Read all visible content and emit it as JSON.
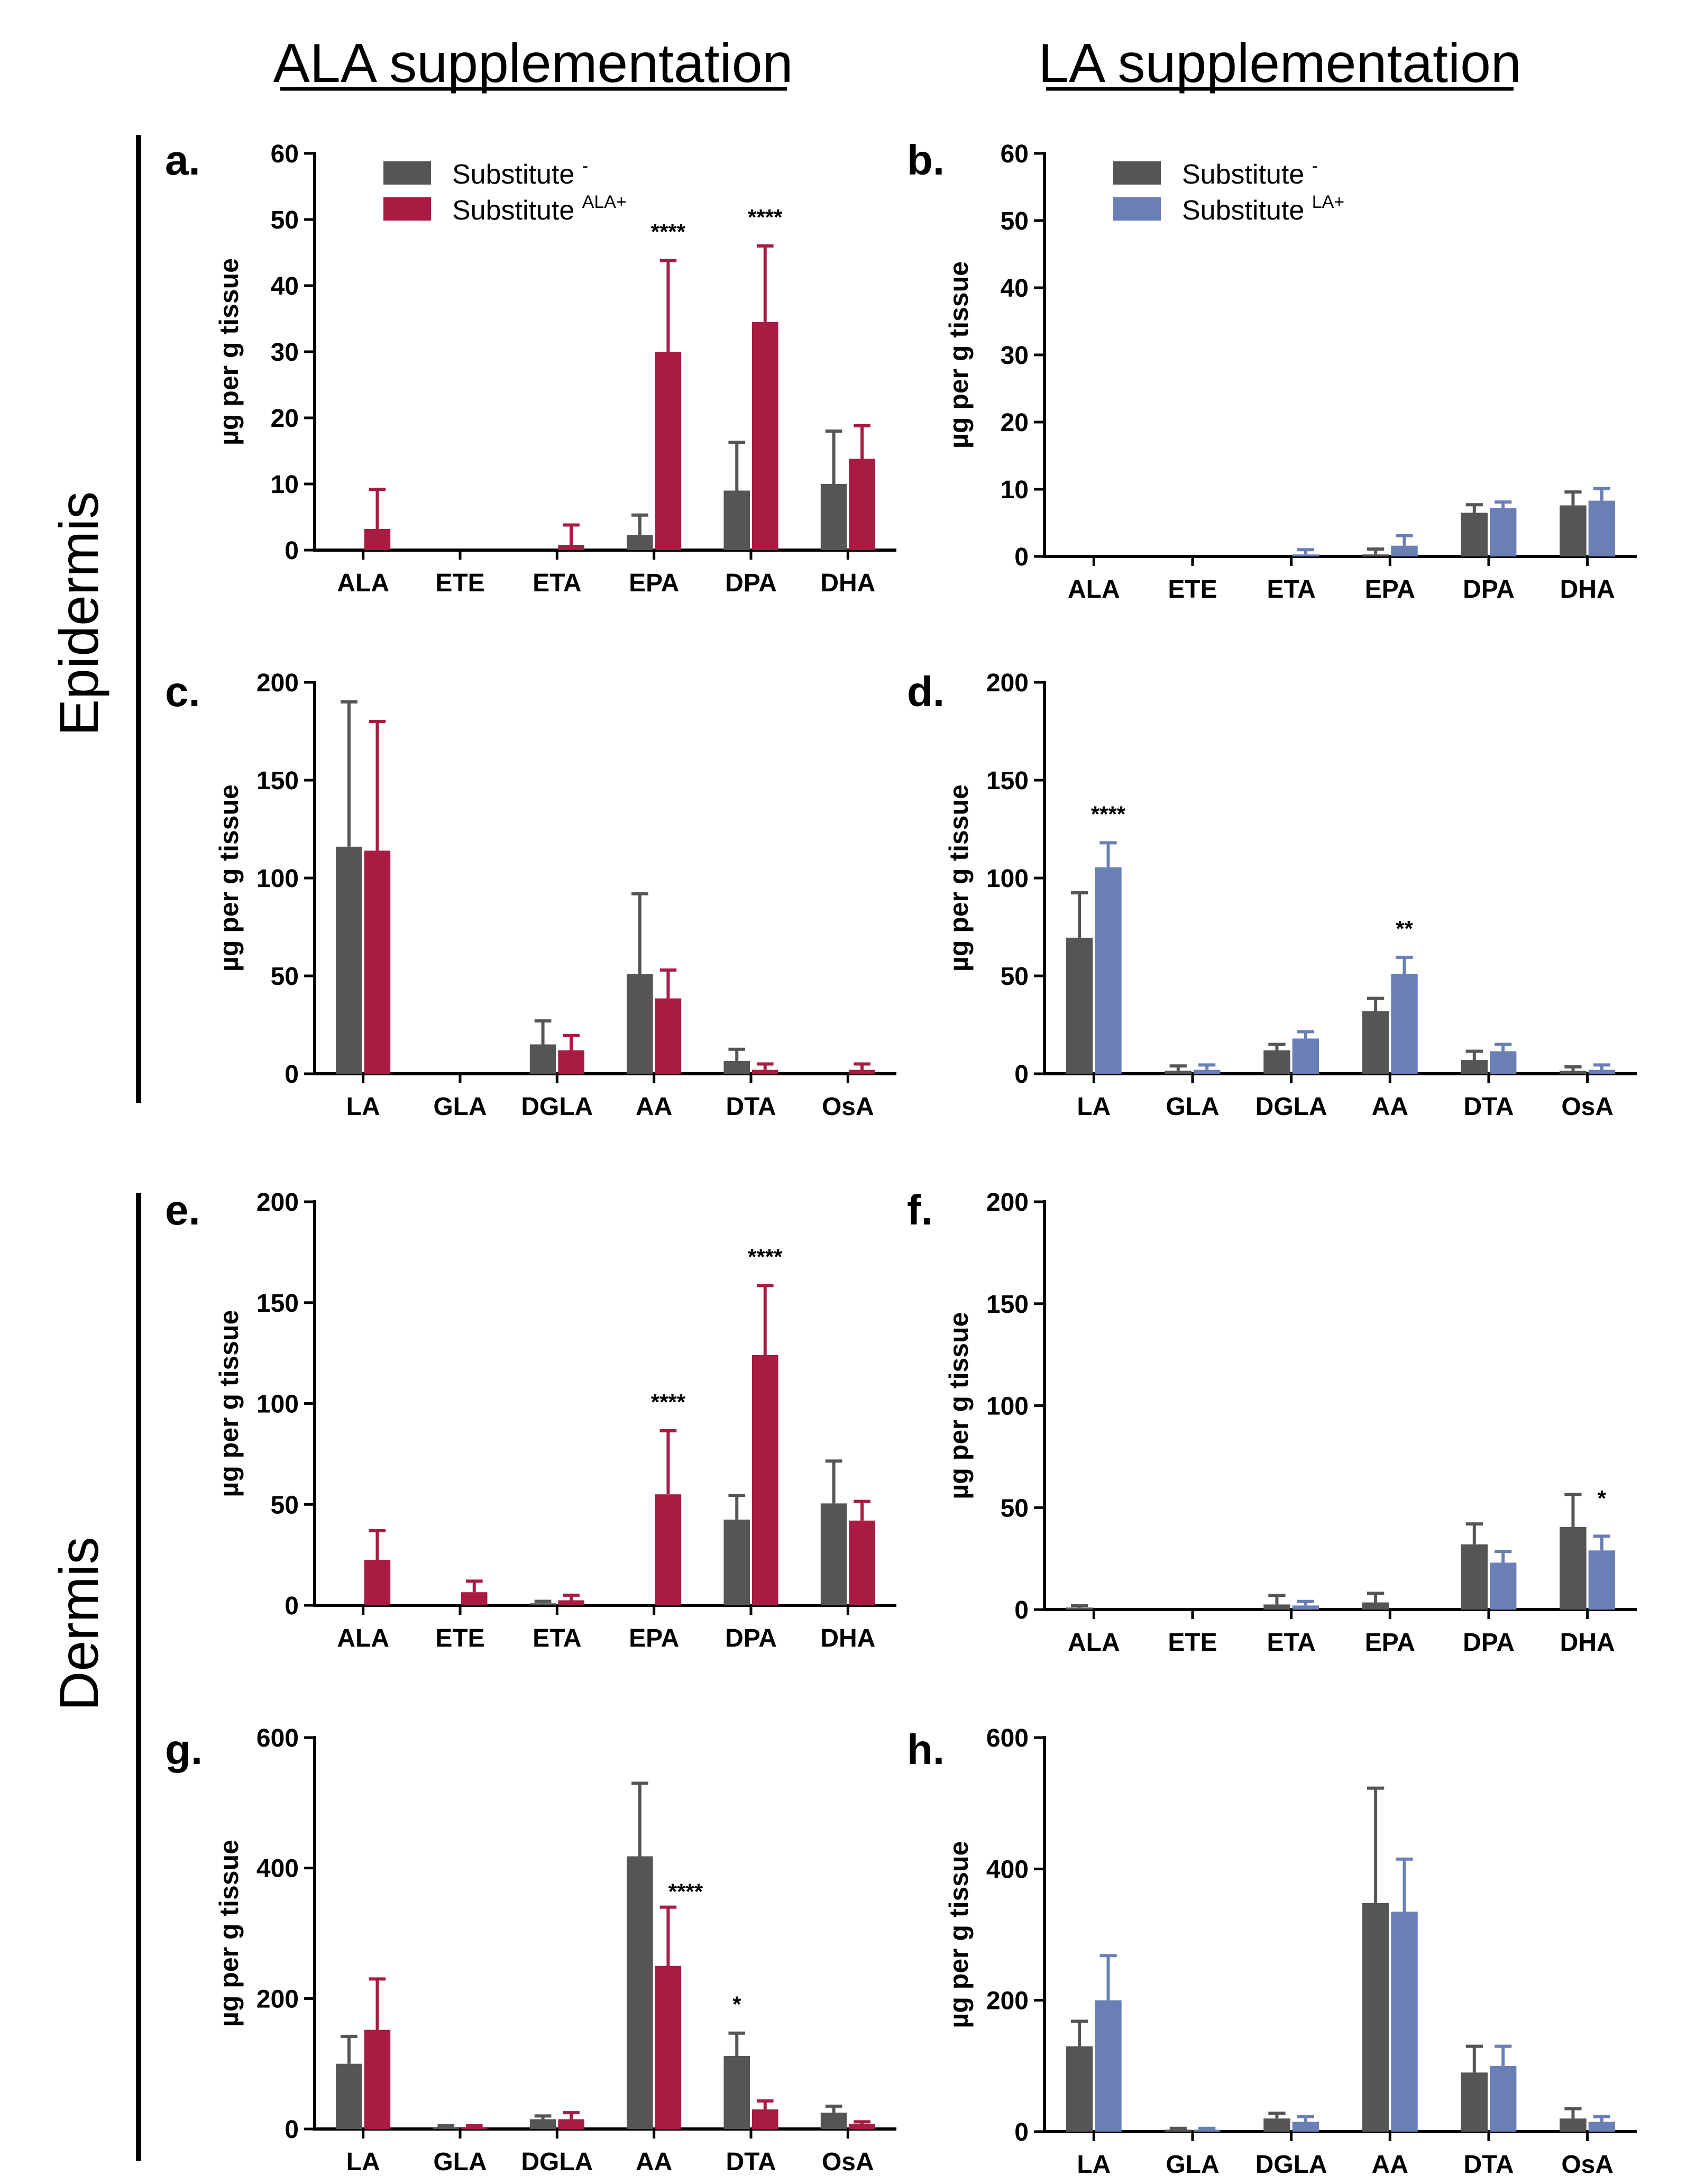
{
  "column_titles": [
    "ALA supplementation",
    "LA supplementation"
  ],
  "row_titles": [
    "Epidermis",
    "Dermis"
  ],
  "colors": {
    "control": "#555555",
    "ala": "#A81B43",
    "la": "#6A7FB5"
  },
  "legends": {
    "ala": {
      "control_label": "Substitute",
      "control_sup": "-",
      "treat_label": "Substitute",
      "treat_sup": "ALA+"
    },
    "la": {
      "control_label": "Substitute",
      "control_sup": "-",
      "treat_label": "Substitute",
      "treat_sup": "LA+"
    }
  },
  "ylabel": "µg per g tissue",
  "chart_data": [
    {
      "panel": "a.",
      "type": "bar",
      "treatment": "ALA",
      "ylim": [
        0,
        60
      ],
      "yticks": [
        0,
        10,
        20,
        30,
        40,
        50,
        60
      ],
      "categories": [
        "ALA",
        "ETE",
        "ETA",
        "EPA",
        "DPA",
        "DHA"
      ],
      "series": [
        {
          "name": "Substitute -",
          "values": [
            0,
            0,
            0,
            2.3,
            9,
            10
          ],
          "errors": [
            0,
            0,
            0,
            3,
            7.3,
            8
          ]
        },
        {
          "name": "Substitute ALA+",
          "values": [
            3.2,
            0,
            0.8,
            30,
            34.5,
            13.8
          ],
          "errors": [
            6,
            0,
            3,
            13.8,
            11.5,
            5
          ]
        }
      ],
      "annotations": [
        {
          "category": "EPA",
          "text": "****"
        },
        {
          "category": "DPA",
          "text": "****"
        }
      ],
      "show_legend": true
    },
    {
      "panel": "b.",
      "type": "bar",
      "treatment": "LA",
      "ylim": [
        0,
        60
      ],
      "yticks": [
        0,
        10,
        20,
        30,
        40,
        50,
        60
      ],
      "categories": [
        "ALA",
        "ETE",
        "ETA",
        "EPA",
        "DPA",
        "DHA"
      ],
      "series": [
        {
          "name": "Substitute -",
          "values": [
            0,
            0,
            0,
            0.3,
            6.5,
            7.6
          ],
          "errors": [
            0,
            0,
            0,
            0.8,
            1.2,
            2
          ]
        },
        {
          "name": "Substitute LA+",
          "values": [
            0,
            0,
            0.3,
            1.6,
            7.2,
            8.3
          ],
          "errors": [
            0,
            0,
            0.7,
            1.5,
            0.9,
            1.8
          ]
        }
      ],
      "annotations": [],
      "show_legend": true
    },
    {
      "panel": "c.",
      "type": "bar",
      "treatment": "ALA",
      "ylim": [
        0,
        200
      ],
      "yticks": [
        0,
        50,
        100,
        150,
        200
      ],
      "categories": [
        "LA",
        "GLA",
        "DGLA",
        "AA",
        "DTA",
        "OsA"
      ],
      "series": [
        {
          "name": "Substitute -",
          "values": [
            116,
            0,
            15,
            51,
            6.5,
            0
          ],
          "errors": [
            74,
            0,
            12,
            41,
            6,
            0
          ]
        },
        {
          "name": "Substitute ALA+",
          "values": [
            114,
            0,
            12,
            38.5,
            2,
            2
          ],
          "errors": [
            66,
            0,
            7.5,
            14.5,
            3,
            3
          ]
        }
      ],
      "annotations": [],
      "show_legend": false
    },
    {
      "panel": "d.",
      "type": "bar",
      "treatment": "LA",
      "ylim": [
        0,
        200
      ],
      "yticks": [
        0,
        50,
        100,
        150,
        200
      ],
      "categories": [
        "LA",
        "GLA",
        "DGLA",
        "AA",
        "DTA",
        "OsA"
      ],
      "series": [
        {
          "name": "Substitute -",
          "values": [
            69.5,
            1.5,
            12,
            32,
            7,
            1.5
          ],
          "errors": [
            23,
            2.5,
            3,
            6.5,
            4.5,
            2
          ]
        },
        {
          "name": "Substitute LA+",
          "values": [
            105.5,
            2,
            18,
            51,
            11.5,
            2
          ],
          "errors": [
            12.5,
            2.5,
            3.5,
            8.5,
            3.5,
            2.5
          ]
        }
      ],
      "annotations": [
        {
          "category": "LA",
          "text": "****"
        },
        {
          "category": "AA",
          "text": "**"
        }
      ],
      "show_legend": false
    },
    {
      "panel": "e.",
      "type": "bar",
      "treatment": "ALA",
      "ylim": [
        0,
        200
      ],
      "yticks": [
        0,
        50,
        100,
        150,
        200
      ],
      "categories": [
        "ALA",
        "ETE",
        "ETA",
        "EPA",
        "DPA",
        "DHA"
      ],
      "series": [
        {
          "name": "Substitute -",
          "values": [
            0,
            0,
            1,
            0,
            42.5,
            50.5
          ],
          "errors": [
            0,
            0,
            1,
            0,
            12,
            21
          ]
        },
        {
          "name": "Substitute ALA+",
          "values": [
            22.5,
            6.5,
            2.5,
            55,
            124,
            42
          ],
          "errors": [
            14.5,
            5.5,
            2.5,
            31.5,
            34.5,
            9.5
          ]
        }
      ],
      "annotations": [
        {
          "category": "EPA",
          "text": "****"
        },
        {
          "category": "DPA",
          "text": "****"
        }
      ],
      "show_legend": false
    },
    {
      "panel": "f.",
      "type": "bar",
      "treatment": "LA",
      "ylim": [
        0,
        200
      ],
      "yticks": [
        0,
        50,
        100,
        150,
        200
      ],
      "categories": [
        "ALA",
        "ETE",
        "ETA",
        "EPA",
        "DPA",
        "DHA"
      ],
      "series": [
        {
          "name": "Substitute -",
          "values": [
            1,
            0,
            2.5,
            3.5,
            32,
            40.5
          ],
          "errors": [
            1,
            0,
            4.5,
            4.5,
            10,
            16
          ]
        },
        {
          "name": "Substitute LA+",
          "values": [
            0,
            0,
            2,
            0,
            23,
            29
          ],
          "errors": [
            0,
            0,
            2,
            0,
            5.5,
            7
          ]
        }
      ],
      "annotations": [
        {
          "category": "DHA",
          "text": "*"
        }
      ],
      "show_legend": false
    },
    {
      "panel": "g.",
      "type": "bar",
      "treatment": "ALA",
      "ylim": [
        0,
        600
      ],
      "yticks": [
        0,
        200,
        400,
        600
      ],
      "categories": [
        "LA",
        "GLA",
        "DGLA",
        "AA",
        "DTA",
        "OsA"
      ],
      "series": [
        {
          "name": "Substitute -",
          "values": [
            100,
            3,
            15,
            418,
            112,
            25
          ],
          "errors": [
            42,
            2,
            5,
            112,
            35,
            10
          ]
        },
        {
          "name": "Substitute ALA+",
          "values": [
            152,
            3,
            15,
            250,
            30,
            8
          ],
          "errors": [
            78,
            2,
            10,
            90,
            13,
            3
          ]
        }
      ],
      "annotations": [
        {
          "category": "AA",
          "text": "****"
        },
        {
          "category": "DTA",
          "text": "*"
        }
      ],
      "show_legend": false
    },
    {
      "panel": "h.",
      "type": "bar",
      "treatment": "LA",
      "ylim": [
        0,
        600
      ],
      "yticks": [
        0,
        200,
        400,
        600
      ],
      "categories": [
        "LA",
        "GLA",
        "DGLA",
        "AA",
        "DTA",
        "OsA"
      ],
      "series": [
        {
          "name": "Substitute -",
          "values": [
            130,
            3,
            20,
            348,
            90,
            20
          ],
          "errors": [
            38,
            2,
            8,
            175,
            40,
            15
          ]
        },
        {
          "name": "Substitute LA+",
          "values": [
            200,
            3,
            15,
            335,
            100,
            15
          ],
          "errors": [
            68,
            2,
            8,
            80,
            30,
            8
          ]
        }
      ],
      "annotations": [],
      "show_legend": false
    }
  ]
}
